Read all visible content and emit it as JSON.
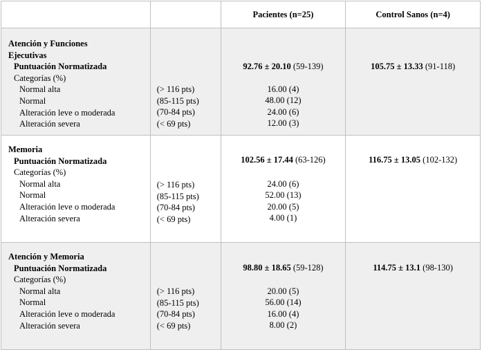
{
  "header": {
    "col_patients": "Pacientes (n=25)",
    "col_controls": "Control Sanos (n=4)"
  },
  "sections": [
    {
      "title_line1": "Atención y Funciones",
      "title_line2": "Ejecutivas",
      "subtitle": "Puntuación Normatizada",
      "categories_label": "Categorías (%)",
      "patients_score_bold": "92.76 ± 20.10",
      "patients_score_range": " (59-139)",
      "controls_score_bold": "105.75 ± 13.33",
      "controls_score_range": " (91-118)",
      "rows": [
        {
          "label": "Normal alta",
          "range": "(> 116 pts)",
          "patients": "16.00 (4)"
        },
        {
          "label": "Normal",
          "range": "(85-115 pts)",
          "patients": "48.00 (12)"
        },
        {
          "label": "Alteración leve o moderada",
          "range": "(70-84 pts)",
          "patients": "24.00 (6)"
        },
        {
          "label": "Alteración severa",
          "range": "(< 69 pts)",
          "patients": "12.00 (3)"
        }
      ]
    },
    {
      "title_line1": "Memoria",
      "subtitle": "Puntuación Normatizada",
      "categories_label": "Categorías (%)",
      "patients_score_bold": "102.56 ± 17.44",
      "patients_score_range": " (63-126)",
      "controls_score_bold": "116.75 ± 13.05",
      "controls_score_range": " (102-132)",
      "rows": [
        {
          "label": "Normal alta",
          "range": "(> 116 pts)",
          "patients": "24.00 (6)"
        },
        {
          "label": "Normal",
          "range": "(85-115 pts)",
          "patients": "52.00 (13)"
        },
        {
          "label": "Alteración leve o moderada",
          "range": "(70-84 pts)",
          "patients": "20.00 (5)"
        },
        {
          "label": "Alteración severa",
          "range": "(< 69 pts)",
          "patients": "4.00 (1)"
        }
      ]
    },
    {
      "title_line1": "Atención y Memoria",
      "subtitle": "Puntuación Normatizada",
      "categories_label": "Categorías (%)",
      "patients_score_bold": "98.80 ± 18.65",
      "patients_score_range": " (59-128)",
      "controls_score_bold": "114.75 ± 13.1",
      "controls_score_range": " (98-130)",
      "rows": [
        {
          "label": "Normal alta",
          "range": "(> 116 pts)",
          "patients": "20.00 (5)"
        },
        {
          "label": "Normal",
          "range": "(85-115 pts)",
          "patients": "56.00 (14)"
        },
        {
          "label": "Alteración leve o moderada",
          "range": "(70-84 pts)",
          "patients": "16.00 (4)"
        },
        {
          "label": "Alteración severa",
          "range": "(< 69 pts)",
          "patients": "8.00 (2)"
        }
      ]
    }
  ]
}
